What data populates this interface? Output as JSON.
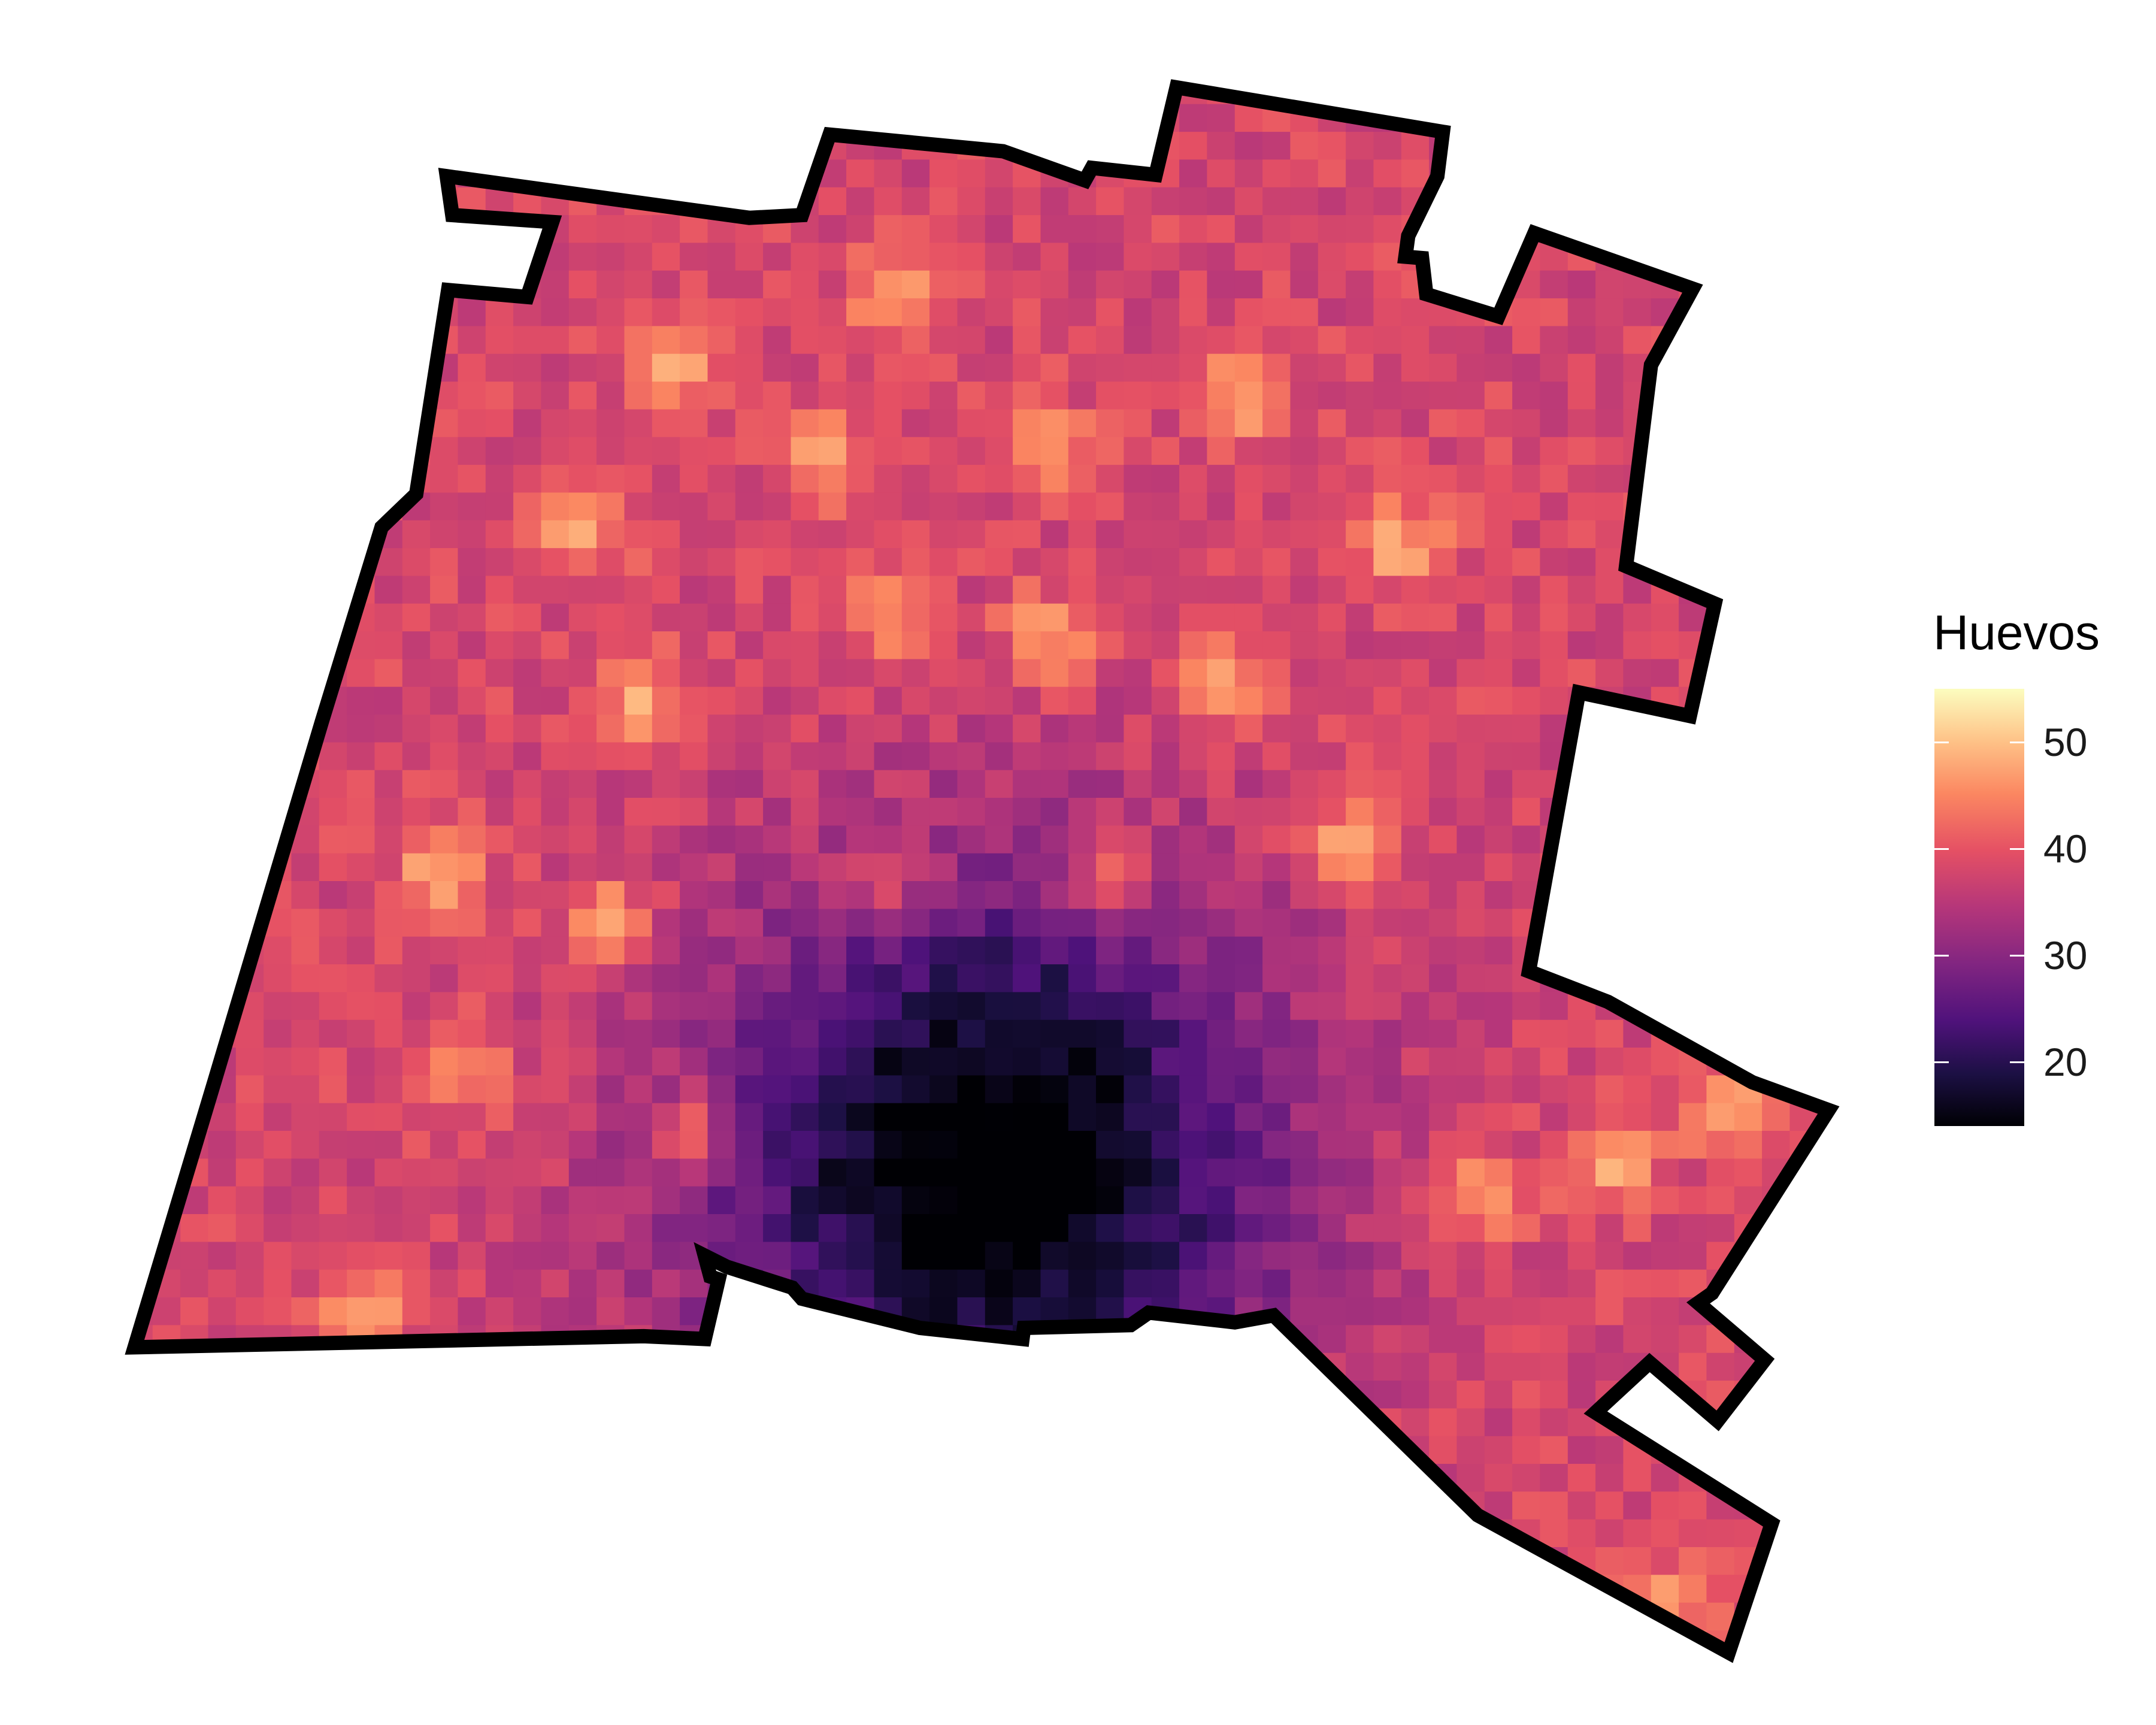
{
  "legend": {
    "title": "Huevos",
    "ticks": [
      {
        "label": "50",
        "value": 50
      },
      {
        "label": "40",
        "value": 40
      },
      {
        "label": "30",
        "value": 30
      },
      {
        "label": "20",
        "value": 20
      }
    ],
    "range": [
      14,
      55
    ],
    "colormap": "magma"
  },
  "map": {
    "background": "#ffffff",
    "boundary_color": "#000000",
    "low_center_value": 14,
    "typical_value": 38,
    "hotspot_value": 48
  }
}
